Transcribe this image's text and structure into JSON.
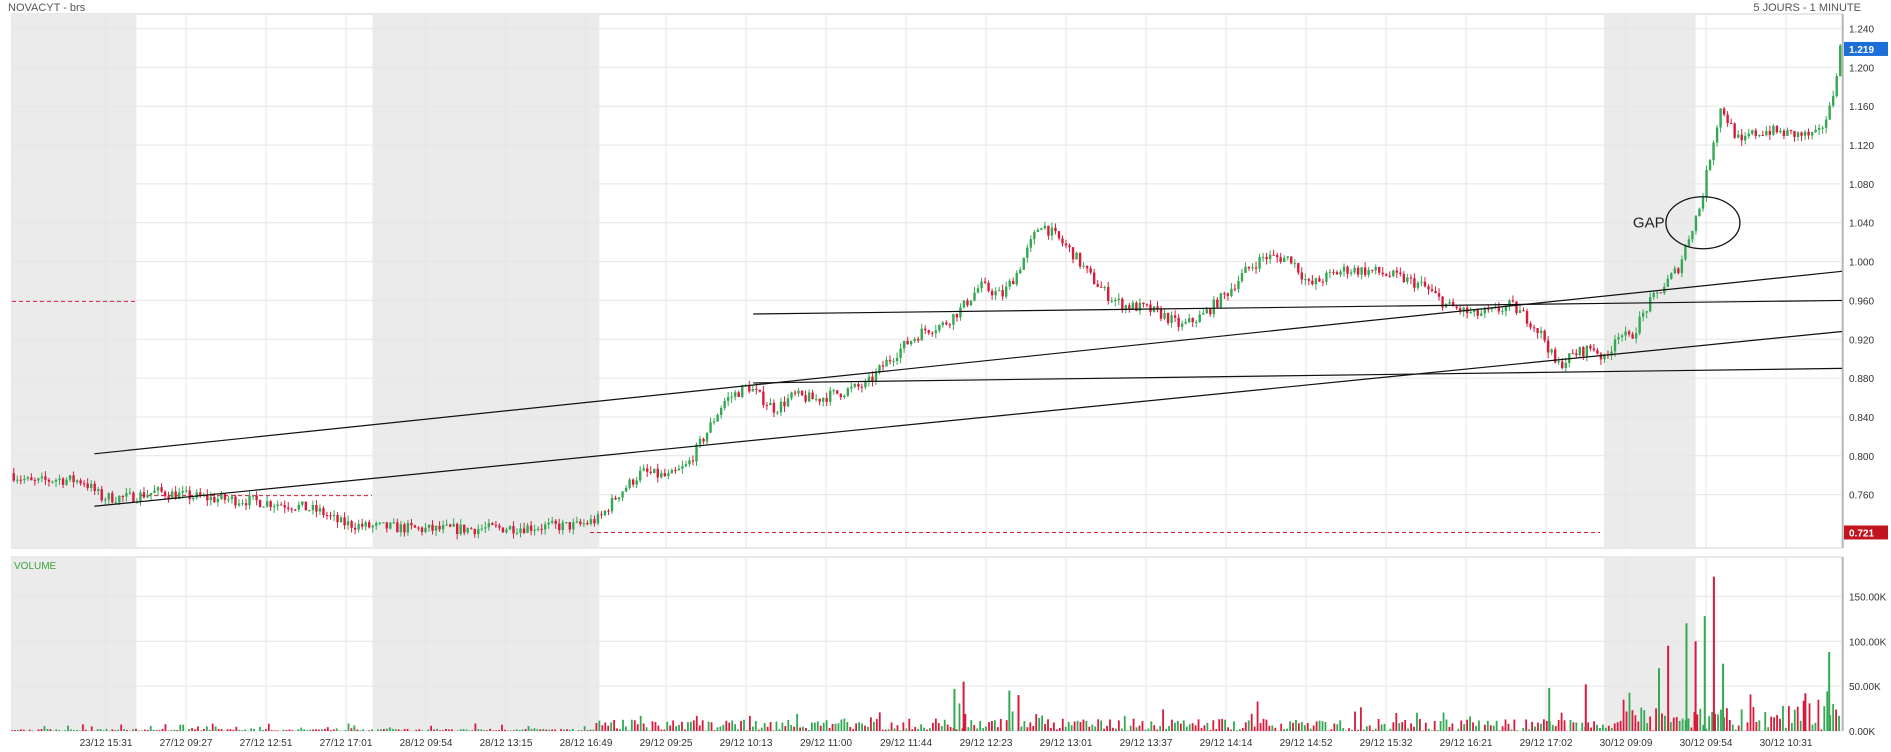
{
  "header": {
    "instrument": "NOVACYT - brs",
    "period": "5 JOURS - 1 MINUTE"
  },
  "colors": {
    "up": "#34a853",
    "down": "#d81b3c",
    "grid": "#e6e6e6",
    "session_shade": "#ebebeb",
    "last_price_badge": "#1c6fd6",
    "ref_price_badge": "#c0151f",
    "ref_line": "#d81b3c",
    "trendline": "#111111"
  },
  "chart_data": [
    {
      "type": "candlestick",
      "title": "",
      "price_axis": {
        "ticks": [
          1.24,
          1.2,
          1.16,
          1.12,
          1.08,
          1.04,
          1.0,
          0.96,
          0.92,
          0.88,
          0.84,
          0.8,
          0.76
        ],
        "tick_labels": [
          "1.240",
          "1.200",
          "1.160",
          "1.120",
          "1.080",
          "1.040",
          "1.000",
          "0.960",
          "0.920",
          "0.880",
          "0.840",
          "0.800",
          "0.760"
        ],
        "range": [
          0.705,
          1.255
        ]
      },
      "time_axis": {
        "labels": [
          "23/12 15:31",
          "27/12 09:27",
          "27/12 12:51",
          "27/12 17:01",
          "28/12 09:54",
          "28/12 13:15",
          "28/12 16:49",
          "29/12 09:25",
          "29/12 10:13",
          "29/12 11:00",
          "29/12 11:44",
          "29/12 12:23",
          "29/12 13:01",
          "29/12 13:37",
          "29/12 14:14",
          "29/12 14:52",
          "29/12 15:32",
          "29/12 16:21",
          "29/12 17:02",
          "30/12 09:09",
          "30/12 09:54",
          "30/12 10:31"
        ]
      },
      "last_price": "1.219",
      "reference_price": "0.721",
      "grid": true,
      "price_path": [
        [
          0.0,
          0.782
        ],
        [
          0.012,
          0.772
        ],
        [
          0.025,
          0.776
        ],
        [
          0.04,
          0.774
        ],
        [
          0.05,
          0.757
        ],
        [
          0.065,
          0.757
        ],
        [
          0.08,
          0.763
        ],
        [
          0.095,
          0.759
        ],
        [
          0.11,
          0.756
        ],
        [
          0.13,
          0.754
        ],
        [
          0.155,
          0.749
        ],
        [
          0.17,
          0.742
        ],
        [
          0.18,
          0.731
        ],
        [
          0.195,
          0.727
        ],
        [
          0.21,
          0.726
        ],
        [
          0.23,
          0.724
        ],
        [
          0.26,
          0.725
        ],
        [
          0.29,
          0.727
        ],
        [
          0.31,
          0.728
        ],
        [
          0.322,
          0.735
        ],
        [
          0.332,
          0.76
        ],
        [
          0.345,
          0.783
        ],
        [
          0.36,
          0.778
        ],
        [
          0.37,
          0.79
        ],
        [
          0.38,
          0.822
        ],
        [
          0.39,
          0.856
        ],
        [
          0.403,
          0.872
        ],
        [
          0.41,
          0.86
        ],
        [
          0.418,
          0.848
        ],
        [
          0.428,
          0.862
        ],
        [
          0.44,
          0.858
        ],
        [
          0.455,
          0.866
        ],
        [
          0.468,
          0.873
        ],
        [
          0.478,
          0.895
        ],
        [
          0.49,
          0.916
        ],
        [
          0.5,
          0.93
        ],
        [
          0.51,
          0.935
        ],
        [
          0.52,
          0.952
        ],
        [
          0.53,
          0.975
        ],
        [
          0.542,
          0.965
        ],
        [
          0.55,
          0.988
        ],
        [
          0.558,
          1.02
        ],
        [
          0.563,
          1.04
        ],
        [
          0.57,
          1.028
        ],
        [
          0.58,
          1.01
        ],
        [
          0.59,
          0.985
        ],
        [
          0.6,
          0.965
        ],
        [
          0.608,
          0.955
        ],
        [
          0.62,
          0.952
        ],
        [
          0.63,
          0.945
        ],
        [
          0.64,
          0.933
        ],
        [
          0.652,
          0.945
        ],
        [
          0.665,
          0.968
        ],
        [
          0.675,
          0.99
        ],
        [
          0.685,
          1.005
        ],
        [
          0.7,
          1.003
        ],
        [
          0.71,
          0.975
        ],
        [
          0.72,
          0.985
        ],
        [
          0.73,
          0.992
        ],
        [
          0.745,
          0.99
        ],
        [
          0.76,
          0.983
        ],
        [
          0.772,
          0.975
        ],
        [
          0.785,
          0.955
        ],
        [
          0.8,
          0.945
        ],
        [
          0.81,
          0.948
        ],
        [
          0.82,
          0.955
        ],
        [
          0.83,
          0.94
        ],
        [
          0.838,
          0.922
        ],
        [
          0.845,
          0.892
        ],
        [
          0.855,
          0.905
        ],
        [
          0.865,
          0.912
        ],
        [
          0.872,
          0.897
        ],
        [
          0.878,
          0.928
        ],
        [
          0.885,
          0.92
        ],
        [
          0.895,
          0.955
        ],
        [
          0.905,
          0.978
        ],
        [
          0.912,
          0.995
        ],
        [
          0.918,
          1.03
        ],
        [
          0.924,
          1.06
        ],
        [
          0.93,
          1.12
        ],
        [
          0.935,
          1.16
        ],
        [
          0.94,
          1.14
        ],
        [
          0.946,
          1.12
        ],
        [
          0.95,
          1.13
        ],
        [
          0.96,
          1.135
        ],
        [
          0.97,
          1.132
        ],
        [
          0.98,
          1.13
        ],
        [
          0.988,
          1.13
        ],
        [
          0.995,
          1.16
        ],
        [
          1.0,
          1.22
        ]
      ],
      "volume_axis": {
        "ticks": [
          0,
          50000,
          100000,
          150000
        ],
        "tick_labels": [
          "0.00K",
          "50.00K",
          "100.00K",
          "150.00K"
        ],
        "range": [
          0,
          185000
        ]
      },
      "volume_title": "VOLUME",
      "volume_spikes": [
        [
          0.515,
          47000
        ],
        [
          0.52,
          55000
        ],
        [
          0.545,
          45000
        ],
        [
          0.55,
          40000
        ],
        [
          0.84,
          48000
        ],
        [
          0.86,
          52000
        ],
        [
          0.9,
          70000
        ],
        [
          0.905,
          95000
        ],
        [
          0.915,
          120000
        ],
        [
          0.92,
          100000
        ],
        [
          0.925,
          128000
        ],
        [
          0.93,
          172000
        ],
        [
          0.935,
          75000
        ],
        [
          0.98,
          42000
        ],
        [
          0.993,
          88000
        ]
      ],
      "annotations": [
        "GAP"
      ]
    }
  ]
}
